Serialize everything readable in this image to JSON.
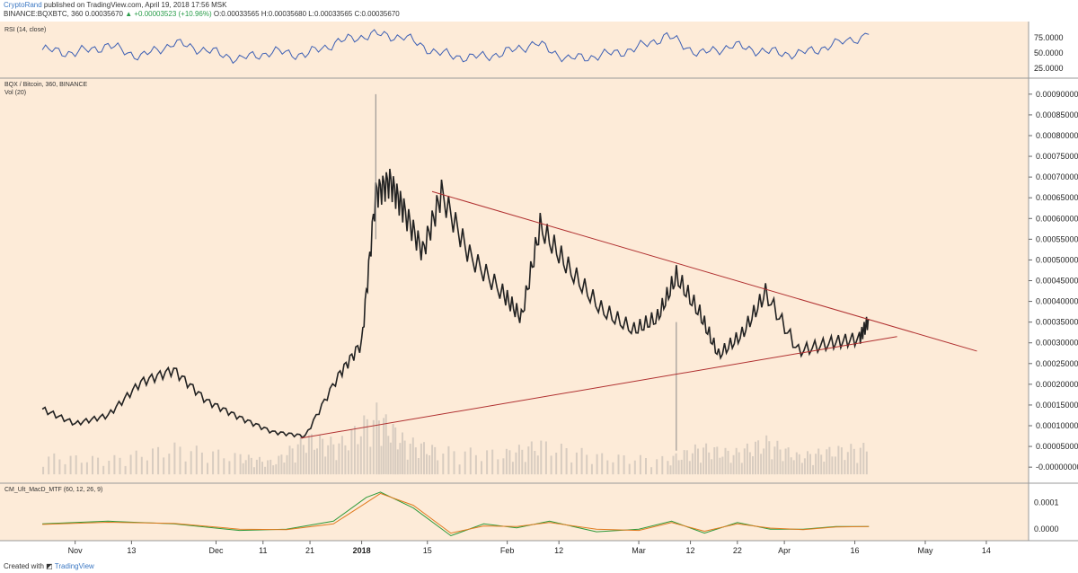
{
  "header": {
    "user": "CryptoRand",
    "published": " published on TradingView.com, April 19, 2018 17:56 MSK",
    "symbol": "BINANCE:BQXBTC, 360 ",
    "last": "0.00035670",
    "change": "▲ +0.00003523 (+10.96%)",
    "ohlc": " O:0.00033565 H:0.00035680 L:0.00033565 C:0.00035670"
  },
  "footer": {
    "created_with": "Created with",
    "brand": "TradingView"
  },
  "colors": {
    "background": "#fdebd8",
    "price": "#222222",
    "rsi": "#3c5fb4",
    "trendline": "#b03030",
    "volume": "#d8ccc0",
    "macd": "#2f9a3a",
    "signal": "#e07b20"
  },
  "chart_data": [
    {
      "type": "line",
      "pane": "rsi",
      "title": "RSI (14, close)",
      "ylim": [
        15,
        95
      ],
      "yticks": [
        "75.0000",
        "50.0000",
        "25.0000"
      ],
      "x": [
        "2017-10-25",
        "2017-11-01",
        "2017-11-08",
        "2017-11-15",
        "2017-11-22",
        "2017-11-29",
        "2017-12-06",
        "2017-12-13",
        "2017-12-20",
        "2017-12-27",
        "2018-01-03",
        "2018-01-10",
        "2018-01-17",
        "2018-01-24",
        "2018-01-31",
        "2018-02-07",
        "2018-02-14",
        "2018-02-21",
        "2018-02-28",
        "2018-03-07",
        "2018-03-14",
        "2018-03-21",
        "2018-03-28",
        "2018-04-04",
        "2018-04-11",
        "2018-04-19"
      ],
      "values": [
        55,
        50,
        62,
        44,
        66,
        54,
        40,
        52,
        47,
        68,
        80,
        76,
        50,
        42,
        49,
        66,
        40,
        46,
        56,
        78,
        48,
        62,
        52,
        48,
        62,
        80
      ]
    },
    {
      "type": "line",
      "pane": "price",
      "title": "BQX / Bitcoin, 360, BINANCE",
      "subtitle": "Vol (20)",
      "ylim": [
        -3e-05,
        0.00093
      ],
      "yticks": [
        "0.00090000",
        "0.00085000",
        "0.00080000",
        "0.00075000",
        "0.00070000",
        "0.00065000",
        "0.00060000",
        "0.00055000",
        "0.00050000",
        "0.00045000",
        "0.00040000",
        "0.00035000",
        "0.00030000",
        "0.00025000",
        "0.00020000",
        "0.00015000",
        "0.00010000",
        "0.00005000",
        "-0.00000000"
      ],
      "xticks": [
        "Nov",
        "13",
        "Dec",
        "11",
        "21",
        "2018",
        "15",
        "Feb",
        "12",
        "Mar",
        "12",
        "22",
        "Apr",
        "16",
        "May",
        "14"
      ],
      "x": [
        "2017-10-25",
        "2017-11-01",
        "2017-11-08",
        "2017-11-15",
        "2017-11-22",
        "2017-11-29",
        "2017-12-06",
        "2017-12-13",
        "2017-12-20",
        "2017-12-27",
        "2018-01-01",
        "2018-01-04",
        "2018-01-07",
        "2018-01-10",
        "2018-01-14",
        "2018-01-18",
        "2018-01-24",
        "2018-01-31",
        "2018-02-04",
        "2018-02-08",
        "2018-02-14",
        "2018-02-21",
        "2018-02-28",
        "2018-03-05",
        "2018-03-09",
        "2018-03-14",
        "2018-03-18",
        "2018-03-23",
        "2018-03-28",
        "2018-04-04",
        "2018-04-11",
        "2018-04-17",
        "2018-04-19"
      ],
      "values": [
        0.00014,
        0.000105,
        0.000125,
        0.000205,
        0.000235,
        0.00016,
        0.00012,
        8.5e-05,
        7.5e-05,
        0.00022,
        0.0003,
        0.00066,
        0.00069,
        0.00062,
        0.00052,
        0.00066,
        0.00051,
        0.00042,
        0.00036,
        0.00058,
        0.00048,
        0.00038,
        0.00033,
        0.00036,
        0.00046,
        0.00037,
        0.00027,
        0.00032,
        0.00042,
        0.00028,
        0.0003,
        0.00031,
        0.000357
      ],
      "wick_high": {
        "x": "2018-01-04",
        "y": 0.0009
      },
      "wick_low": {
        "x": "2018-03-09",
        "y": 4e-05
      },
      "trendlines": [
        {
          "from": {
            "x": "2017-12-19",
            "y": 7e-05
          },
          "to": {
            "x": "2018-04-25",
            "y": 0.000315
          }
        },
        {
          "from": {
            "x": "2018-01-16",
            "y": 0.000665
          },
          "to": {
            "x": "2018-05-12",
            "y": 0.00028
          }
        }
      ]
    },
    {
      "type": "bar",
      "pane": "volume",
      "title": "Vol (20)",
      "x": [
        "2017-10-25",
        "2017-11-08",
        "2017-11-22",
        "2017-12-06",
        "2017-12-13",
        "2017-12-20",
        "2017-12-27",
        "2018-01-04",
        "2018-01-10",
        "2018-01-17",
        "2018-01-31",
        "2018-02-08",
        "2018-02-21",
        "2018-03-07",
        "2018-03-14",
        "2018-03-21",
        "2018-03-28",
        "2018-04-04",
        "2018-04-11",
        "2018-04-19"
      ],
      "values": [
        0.3,
        0.25,
        0.45,
        0.3,
        0.2,
        0.6,
        0.5,
        1.0,
        0.55,
        0.4,
        0.35,
        0.5,
        0.3,
        0.25,
        0.45,
        0.35,
        0.55,
        0.3,
        0.4,
        0.45
      ]
    },
    {
      "type": "line",
      "pane": "macd",
      "title": "CM_Ult_MacD_MTF (60, 12, 26, 9)",
      "ylim": [
        -3e-05,
        0.00016
      ],
      "yticks": [
        "0.0001",
        "0.0000"
      ],
      "x": [
        "2017-10-25",
        "2017-11-08",
        "2017-11-22",
        "2017-12-06",
        "2017-12-16",
        "2017-12-26",
        "2018-01-02",
        "2018-01-05",
        "2018-01-12",
        "2018-01-20",
        "2018-01-27",
        "2018-02-03",
        "2018-02-10",
        "2018-02-20",
        "2018-03-01",
        "2018-03-08",
        "2018-03-15",
        "2018-03-22",
        "2018-03-29",
        "2018-04-05",
        "2018-04-12",
        "2018-04-19"
      ],
      "series": [
        {
          "name": "MacD",
          "values": [
            2e-05,
            3e-05,
            2e-05,
            -5e-06,
            0.0,
            3e-05,
            0.00012,
            0.00014,
            8e-05,
            -2.5e-05,
            2e-05,
            5e-06,
            3e-05,
            -1e-05,
            0.0,
            3e-05,
            -1.5e-05,
            2.5e-05,
            0.0,
            0.0,
            1e-05,
            1e-05
          ]
        },
        {
          "name": "Signal",
          "values": [
            1.8e-05,
            2.6e-05,
            2.2e-05,
            0.0,
            -2e-06,
            2e-05,
            0.0001,
            0.000135,
            9e-05,
            -1.5e-05,
            1.2e-05,
            1e-05,
            2.5e-05,
            0.0,
            -5e-06,
            2.5e-05,
            -8e-06,
            2e-05,
            4e-06,
            -2e-06,
            8e-06,
            1e-05
          ]
        }
      ]
    }
  ]
}
